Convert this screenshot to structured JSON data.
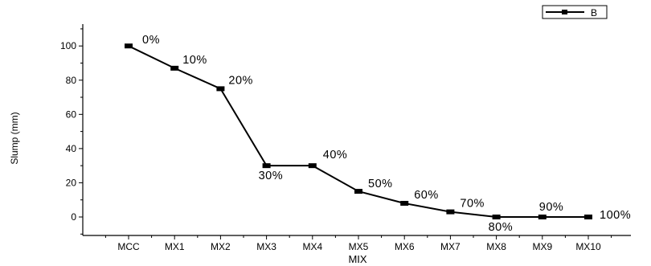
{
  "chart_data": {
    "type": "line",
    "title": "",
    "xlabel": "MIX",
    "ylabel": "Slump (mm)",
    "categories": [
      "MCC",
      "MX1",
      "MX2",
      "MX3",
      "MX4",
      "MX5",
      "MX6",
      "MX7",
      "MX8",
      "MX9",
      "MX10"
    ],
    "series": [
      {
        "name": "B",
        "values": [
          100,
          87,
          75,
          30,
          30,
          15,
          8,
          3,
          0,
          0,
          0
        ],
        "labels": [
          "0%",
          "10%",
          "20%",
          "30%",
          "40%",
          "50%",
          "60%",
          "70%",
          "80%",
          "90%",
          "100%"
        ]
      }
    ],
    "ylim": [
      -10,
      110
    ],
    "yticks": [
      0,
      20,
      40,
      60,
      80,
      100
    ],
    "grid": false,
    "legend": "top-right",
    "colors": {
      "line": "#000000",
      "axis": "#000000"
    }
  }
}
